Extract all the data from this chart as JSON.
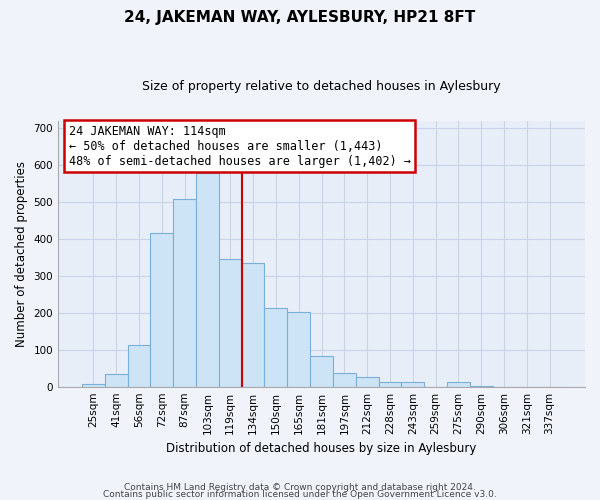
{
  "title": "24, JAKEMAN WAY, AYLESBURY, HP21 8FT",
  "subtitle": "Size of property relative to detached houses in Aylesbury",
  "xlabel": "Distribution of detached houses by size in Aylesbury",
  "ylabel": "Number of detached properties",
  "bar_labels": [
    "25sqm",
    "41sqm",
    "56sqm",
    "72sqm",
    "87sqm",
    "103sqm",
    "119sqm",
    "134sqm",
    "150sqm",
    "165sqm",
    "181sqm",
    "197sqm",
    "212sqm",
    "228sqm",
    "243sqm",
    "259sqm",
    "275sqm",
    "290sqm",
    "306sqm",
    "321sqm",
    "337sqm"
  ],
  "bar_values": [
    8,
    35,
    113,
    416,
    508,
    578,
    345,
    335,
    213,
    202,
    83,
    37,
    26,
    13,
    13,
    0,
    13,
    2,
    0,
    0,
    0
  ],
  "bar_color": "#cce4f5",
  "bar_edge_color": "#7ab0d8",
  "vline_x_index": 6,
  "vline_color": "#cc0000",
  "annotation_line1": "24 JAKEMAN WAY: 114sqm",
  "annotation_line2": "← 50% of detached houses are smaller (1,443)",
  "annotation_line3": "48% of semi-detached houses are larger (1,402) →",
  "annotation_box_color": "#ffffff",
  "annotation_box_edge": "#cc0000",
  "ylim": [
    0,
    720
  ],
  "yticks": [
    0,
    100,
    200,
    300,
    400,
    500,
    600,
    700
  ],
  "footer_line1": "Contains HM Land Registry data © Crown copyright and database right 2024.",
  "footer_line2": "Contains public sector information licensed under the Open Government Licence v3.0.",
  "bg_color": "#f0f4fa",
  "plot_bg_color": "#e8eef8",
  "grid_color": "#c8d4e8",
  "title_fontsize": 11,
  "subtitle_fontsize": 9,
  "axis_fontsize": 8.5,
  "tick_fontsize": 7.5,
  "annotation_fontsize": 8.5
}
